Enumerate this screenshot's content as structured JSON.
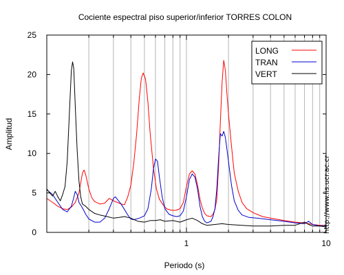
{
  "site_url": "http://www.lis.ucr.ac.cr",
  "chart_data": {
    "type": "line",
    "title": "Cociente espectral piso superior/inferior  TORRES COLON",
    "xlabel": "Periodo (s)",
    "ylabel": "Amplitud",
    "xscale": "log",
    "xlim": [
      0.1,
      10
    ],
    "ylim": [
      0,
      25
    ],
    "x_tick_labels": [
      "1",
      "10"
    ],
    "y_ticks": [
      0,
      5,
      10,
      15,
      20,
      25
    ],
    "grid": "vertical",
    "legend_position": "top-right",
    "series": [
      {
        "name": "LONG",
        "color": "#ff0000",
        "points": [
          [
            0.1,
            4.3
          ],
          [
            0.11,
            3.8
          ],
          [
            0.12,
            3.3
          ],
          [
            0.13,
            3.0
          ],
          [
            0.14,
            2.9
          ],
          [
            0.15,
            3.2
          ],
          [
            0.16,
            3.8
          ],
          [
            0.17,
            5.0
          ],
          [
            0.18,
            7.5
          ],
          [
            0.185,
            7.9
          ],
          [
            0.19,
            7.3
          ],
          [
            0.2,
            5.5
          ],
          [
            0.21,
            4.4
          ],
          [
            0.22,
            3.9
          ],
          [
            0.24,
            3.6
          ],
          [
            0.26,
            3.7
          ],
          [
            0.28,
            4.3
          ],
          [
            0.3,
            4.0
          ],
          [
            0.32,
            3.8
          ],
          [
            0.34,
            3.6
          ],
          [
            0.36,
            3.5
          ],
          [
            0.38,
            4.5
          ],
          [
            0.4,
            6.0
          ],
          [
            0.42,
            8.8
          ],
          [
            0.44,
            12.5
          ],
          [
            0.46,
            17.0
          ],
          [
            0.475,
            19.5
          ],
          [
            0.49,
            20.2
          ],
          [
            0.51,
            19.4
          ],
          [
            0.53,
            16.5
          ],
          [
            0.55,
            12.5
          ],
          [
            0.58,
            8.2
          ],
          [
            0.61,
            5.5
          ],
          [
            0.64,
            4.2
          ],
          [
            0.68,
            3.5
          ],
          [
            0.72,
            3.0
          ],
          [
            0.78,
            2.8
          ],
          [
            0.84,
            2.8
          ],
          [
            0.9,
            3.0
          ],
          [
            0.95,
            3.8
          ],
          [
            1.0,
            5.8
          ],
          [
            1.05,
            7.4
          ],
          [
            1.1,
            7.8
          ],
          [
            1.15,
            7.4
          ],
          [
            1.2,
            6.0
          ],
          [
            1.25,
            4.2
          ],
          [
            1.3,
            3.1
          ],
          [
            1.35,
            2.4
          ],
          [
            1.4,
            2.1
          ],
          [
            1.5,
            2.0
          ],
          [
            1.55,
            2.3
          ],
          [
            1.6,
            2.9
          ],
          [
            1.65,
            4.2
          ],
          [
            1.7,
            8.5
          ],
          [
            1.75,
            14.0
          ],
          [
            1.8,
            19.0
          ],
          [
            1.85,
            21.8
          ],
          [
            1.9,
            20.5
          ],
          [
            1.95,
            17.5
          ],
          [
            2.0,
            15.0
          ],
          [
            2.1,
            11.0
          ],
          [
            2.2,
            7.5
          ],
          [
            2.35,
            5.2
          ],
          [
            2.5,
            3.8
          ],
          [
            2.7,
            3.0
          ],
          [
            3.0,
            2.5
          ],
          [
            3.5,
            2.0
          ],
          [
            4.0,
            1.8
          ],
          [
            5.0,
            1.5
          ],
          [
            6.0,
            1.3
          ],
          [
            7.0,
            1.2
          ],
          [
            8.0,
            1.0
          ],
          [
            9.0,
            0.9
          ],
          [
            10.0,
            0.9
          ]
        ]
      },
      {
        "name": "TRAN",
        "color": "#0000cc",
        "points": [
          [
            0.1,
            5.4
          ],
          [
            0.11,
            4.8
          ],
          [
            0.12,
            3.8
          ],
          [
            0.13,
            2.9
          ],
          [
            0.14,
            2.6
          ],
          [
            0.15,
            3.3
          ],
          [
            0.155,
            4.2
          ],
          [
            0.16,
            5.2
          ],
          [
            0.165,
            4.8
          ],
          [
            0.17,
            3.8
          ],
          [
            0.18,
            3.1
          ],
          [
            0.19,
            2.3
          ],
          [
            0.2,
            1.7
          ],
          [
            0.22,
            1.3
          ],
          [
            0.24,
            1.3
          ],
          [
            0.26,
            1.8
          ],
          [
            0.28,
            3.0
          ],
          [
            0.3,
            4.3
          ],
          [
            0.31,
            4.5
          ],
          [
            0.32,
            4.2
          ],
          [
            0.34,
            3.6
          ],
          [
            0.36,
            2.9
          ],
          [
            0.38,
            2.2
          ],
          [
            0.4,
            1.7
          ],
          [
            0.42,
            1.6
          ],
          [
            0.46,
            1.8
          ],
          [
            0.5,
            2.1
          ],
          [
            0.53,
            3.0
          ],
          [
            0.56,
            5.5
          ],
          [
            0.58,
            8.0
          ],
          [
            0.6,
            9.3
          ],
          [
            0.62,
            9.0
          ],
          [
            0.64,
            7.0
          ],
          [
            0.67,
            4.5
          ],
          [
            0.7,
            3.0
          ],
          [
            0.75,
            2.3
          ],
          [
            0.8,
            2.1
          ],
          [
            0.85,
            2.0
          ],
          [
            0.9,
            2.1
          ],
          [
            0.95,
            2.7
          ],
          [
            1.0,
            4.5
          ],
          [
            1.05,
            6.7
          ],
          [
            1.1,
            7.4
          ],
          [
            1.15,
            7.0
          ],
          [
            1.2,
            5.5
          ],
          [
            1.25,
            3.3
          ],
          [
            1.3,
            2.0
          ],
          [
            1.35,
            1.4
          ],
          [
            1.4,
            1.2
          ],
          [
            1.5,
            1.4
          ],
          [
            1.55,
            2.0
          ],
          [
            1.6,
            3.0
          ],
          [
            1.65,
            5.5
          ],
          [
            1.7,
            9.5
          ],
          [
            1.75,
            12.5
          ],
          [
            1.8,
            12.2
          ],
          [
            1.85,
            12.8
          ],
          [
            1.9,
            12.0
          ],
          [
            1.95,
            10.5
          ],
          [
            2.0,
            9.0
          ],
          [
            2.1,
            6.0
          ],
          [
            2.2,
            4.0
          ],
          [
            2.35,
            2.8
          ],
          [
            2.5,
            2.2
          ],
          [
            2.8,
            1.9
          ],
          [
            3.2,
            1.8
          ],
          [
            4.0,
            1.6
          ],
          [
            5.0,
            1.4
          ],
          [
            6.0,
            1.2
          ],
          [
            7.0,
            1.1
          ],
          [
            7.5,
            1.4
          ],
          [
            8.0,
            1.0
          ],
          [
            9.0,
            0.8
          ],
          [
            10.0,
            0.9
          ]
        ]
      },
      {
        "name": "VERT",
        "color": "#000000",
        "points": [
          [
            0.1,
            5.5
          ],
          [
            0.105,
            5.0
          ],
          [
            0.11,
            4.6
          ],
          [
            0.115,
            5.2
          ],
          [
            0.12,
            4.5
          ],
          [
            0.125,
            4.0
          ],
          [
            0.13,
            4.8
          ],
          [
            0.135,
            5.8
          ],
          [
            0.14,
            9.0
          ],
          [
            0.145,
            15.0
          ],
          [
            0.15,
            20.5
          ],
          [
            0.153,
            21.6
          ],
          [
            0.156,
            20.8
          ],
          [
            0.16,
            16.0
          ],
          [
            0.165,
            10.5
          ],
          [
            0.17,
            6.5
          ],
          [
            0.175,
            4.5
          ],
          [
            0.18,
            3.6
          ],
          [
            0.19,
            3.3
          ],
          [
            0.2,
            2.9
          ],
          [
            0.22,
            2.4
          ],
          [
            0.24,
            2.2
          ],
          [
            0.27,
            2.0
          ],
          [
            0.3,
            1.8
          ],
          [
            0.33,
            1.9
          ],
          [
            0.36,
            2.0
          ],
          [
            0.4,
            1.8
          ],
          [
            0.45,
            1.4
          ],
          [
            0.5,
            1.3
          ],
          [
            0.55,
            1.5
          ],
          [
            0.6,
            1.5
          ],
          [
            0.65,
            1.6
          ],
          [
            0.7,
            1.4
          ],
          [
            0.8,
            1.5
          ],
          [
            0.9,
            1.3
          ],
          [
            1.0,
            1.6
          ],
          [
            1.1,
            1.8
          ],
          [
            1.2,
            1.5
          ],
          [
            1.3,
            1.1
          ],
          [
            1.4,
            0.9
          ],
          [
            1.6,
            1.0
          ],
          [
            1.8,
            1.1
          ],
          [
            2.0,
            1.0
          ],
          [
            2.5,
            0.9
          ],
          [
            3.0,
            0.8
          ],
          [
            4.0,
            0.8
          ],
          [
            5.0,
            0.9
          ],
          [
            6.0,
            0.9
          ],
          [
            7.0,
            1.3
          ],
          [
            7.5,
            1.0
          ],
          [
            8.0,
            0.8
          ],
          [
            9.0,
            0.8
          ],
          [
            10.0,
            0.7
          ]
        ]
      }
    ]
  }
}
